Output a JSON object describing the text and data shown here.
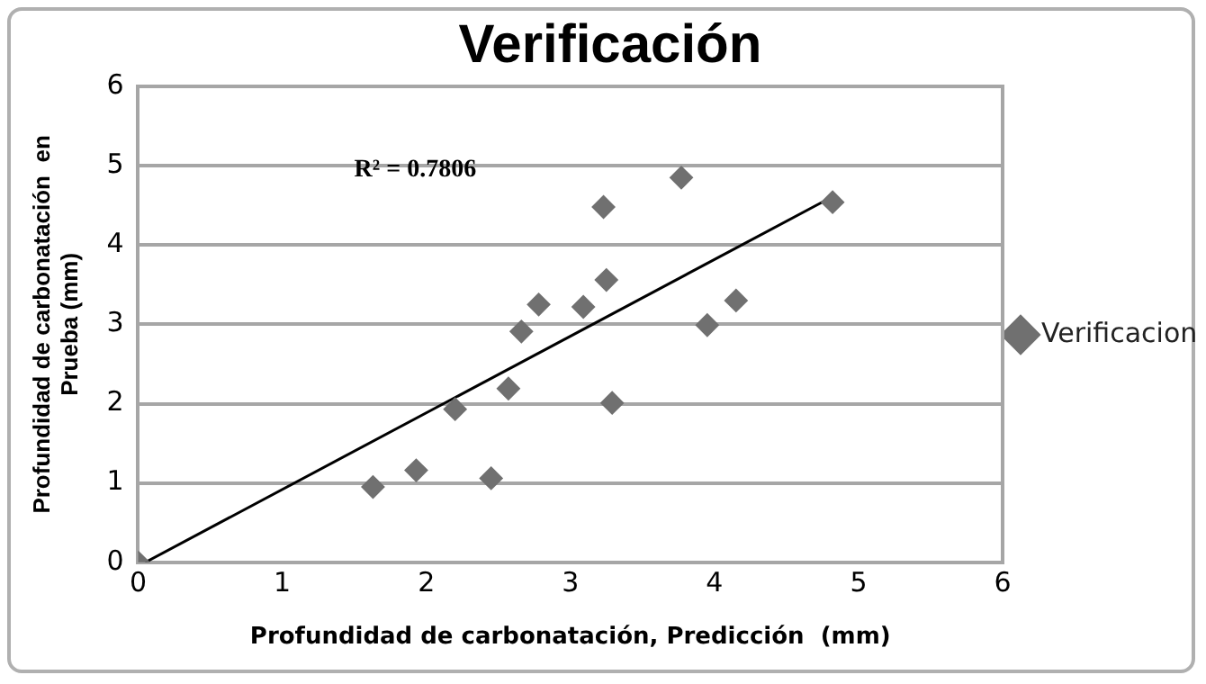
{
  "chart_data": {
    "type": "scatter",
    "title": "Verificación",
    "xlabel": "Profundidad de carbonatación, Predicción  (mm)",
    "ylabel": "Profundidad de carbonatación  en Prueba (mm)",
    "annotations": [
      "R² = 0.7806"
    ],
    "series": [
      {
        "name": "Verificacion",
        "color": "#707070",
        "marker": "diamond",
        "x": [
          0,
          1.63,
          1.93,
          2.2,
          2.45,
          2.57,
          2.66,
          2.78,
          3.09,
          3.23,
          3.25,
          3.29,
          3.77,
          3.95,
          4.15,
          4.82
        ],
        "values": [
          0,
          0.95,
          1.16,
          1.93,
          1.06,
          2.19,
          2.91,
          3.25,
          3.22,
          4.48,
          3.56,
          2.01,
          4.85,
          2.99,
          3.3,
          4.54
        ]
      },
      {
        "type": "line",
        "color": "#000000",
        "marker": "none",
        "x": [
          0.05,
          4.82
        ],
        "values": [
          0,
          4.61
        ]
      }
    ],
    "xlim": [
      0,
      6
    ],
    "xticks": [
      0,
      1,
      2,
      3,
      4,
      5,
      6
    ],
    "ylim": [
      0,
      6
    ],
    "yticks": [
      0,
      1,
      2,
      3,
      4,
      5,
      6
    ],
    "grid": "y",
    "legend": "right"
  }
}
